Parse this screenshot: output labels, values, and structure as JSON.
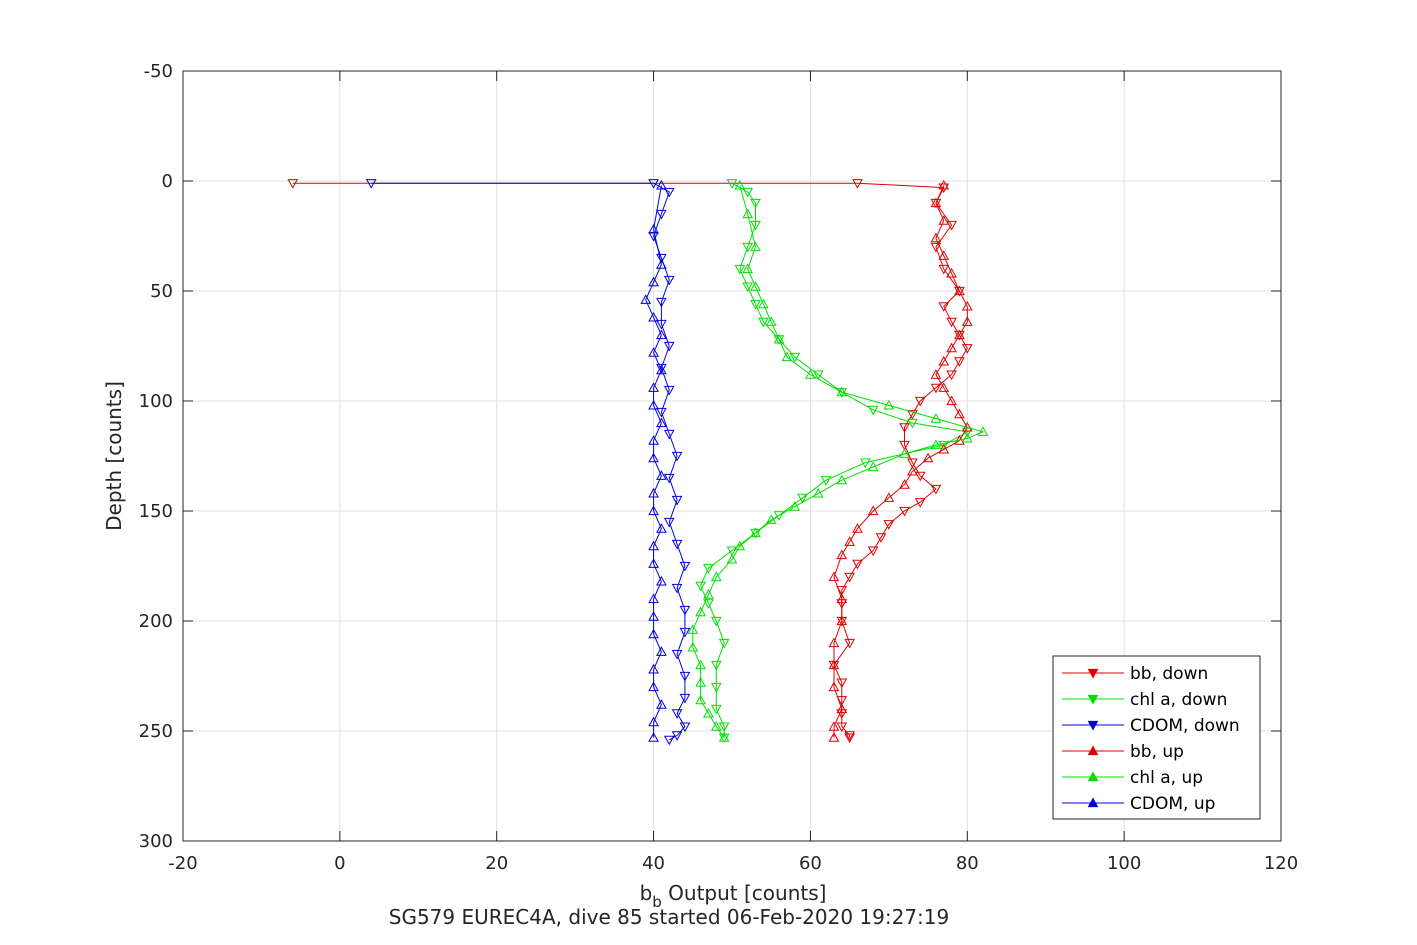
{
  "chart_data": {
    "type": "line",
    "xlabel": "b",
    "xlabel_sub": "b",
    "xlabel_rest": " Output [counts]",
    "ylabel": "Depth [counts]",
    "subtitle": "SG579 EUREC4A, dive 85 started 06-Feb-2020 19:27:19",
    "xlim": [
      -20,
      120
    ],
    "ylim": [
      -50,
      300
    ],
    "y_reversed": true,
    "xticks": [
      -20,
      0,
      20,
      40,
      60,
      80,
      100,
      120
    ],
    "yticks": [
      -50,
      0,
      50,
      100,
      150,
      200,
      250,
      300
    ],
    "grid": true,
    "legend_position": "bottom-right",
    "series": [
      {
        "name": "bb, down",
        "color": "#e00000",
        "marker": "triangle-down",
        "x": [
          -6,
          66,
          77,
          76,
          78,
          76,
          77,
          79,
          77,
          78,
          79,
          80,
          79,
          78,
          76,
          74,
          73,
          72,
          72,
          73,
          74,
          76,
          74,
          72,
          70,
          69,
          68,
          66,
          65,
          64,
          64,
          64,
          65,
          63,
          64,
          64,
          64,
          64,
          65,
          65
        ],
        "y": [
          1,
          1,
          3,
          10,
          20,
          30,
          40,
          50,
          57,
          64,
          70,
          76,
          82,
          88,
          94,
          100,
          106,
          112,
          120,
          128,
          134,
          140,
          146,
          150,
          156,
          162,
          168,
          174,
          180,
          186,
          192,
          200,
          210,
          220,
          228,
          236,
          242,
          248,
          252,
          253
        ]
      },
      {
        "name": "chl a, down",
        "color": "#00e000",
        "marker": "triangle-down",
        "x": [
          50,
          52,
          53,
          53,
          52,
          51,
          52,
          53,
          54,
          56,
          58,
          61,
          64,
          68,
          73,
          80,
          77,
          67,
          62,
          59,
          56,
          53,
          50,
          47,
          46,
          47,
          48,
          49,
          48,
          48,
          48,
          49,
          49
        ],
        "y": [
          1,
          5,
          10,
          20,
          30,
          40,
          48,
          56,
          64,
          72,
          80,
          88,
          96,
          104,
          110,
          114,
          120,
          128,
          136,
          144,
          152,
          160,
          168,
          176,
          184,
          192,
          200,
          210,
          220,
          230,
          240,
          248,
          253
        ]
      },
      {
        "name": "CDOM, down",
        "color": "#0000e0",
        "marker": "triangle-down",
        "x": [
          4,
          40,
          42,
          41,
          40,
          41,
          42,
          41,
          41,
          42,
          41,
          42,
          41,
          42,
          43,
          42,
          43,
          42,
          43,
          44,
          43,
          44,
          44,
          43,
          44,
          44,
          43,
          44,
          43,
          42
        ],
        "y": [
          1,
          1,
          5,
          15,
          25,
          35,
          45,
          55,
          65,
          75,
          85,
          95,
          105,
          115,
          125,
          135,
          145,
          155,
          165,
          175,
          185,
          195,
          205,
          215,
          225,
          235,
          242,
          248,
          252,
          254
        ]
      },
      {
        "name": "bb, up",
        "color": "#e00000",
        "marker": "triangle-up",
        "x": [
          63,
          63,
          64,
          63,
          63,
          63,
          64,
          64,
          63,
          64,
          65,
          66,
          68,
          70,
          72,
          73,
          75,
          77,
          79,
          80,
          79,
          78,
          77,
          76,
          77,
          78,
          79,
          80,
          80,
          79,
          78,
          77,
          76,
          77,
          76,
          77
        ],
        "y": [
          253,
          248,
          240,
          230,
          220,
          210,
          200,
          190,
          180,
          170,
          164,
          158,
          150,
          144,
          138,
          132,
          126,
          122,
          118,
          112,
          106,
          100,
          94,
          88,
          82,
          76,
          70,
          64,
          57,
          50,
          42,
          34,
          26,
          18,
          10,
          2
        ]
      },
      {
        "name": "chl a, up",
        "color": "#00e000",
        "marker": "triangle-up",
        "x": [
          49,
          48,
          47,
          46,
          46,
          46,
          45,
          45,
          46,
          47,
          48,
          50,
          51,
          53,
          55,
          58,
          61,
          64,
          68,
          72,
          76,
          80,
          82,
          76,
          70,
          64,
          60,
          57,
          56,
          55,
          54,
          53,
          52,
          53,
          52,
          51
        ],
        "y": [
          253,
          248,
          242,
          236,
          228,
          220,
          212,
          204,
          196,
          188,
          180,
          172,
          166,
          160,
          154,
          148,
          142,
          136,
          130,
          124,
          120,
          117,
          114,
          108,
          102,
          96,
          88,
          80,
          72,
          64,
          56,
          48,
          40,
          30,
          15,
          2
        ]
      },
      {
        "name": "CDOM, up",
        "color": "#0000e0",
        "marker": "triangle-up",
        "x": [
          40,
          40,
          41,
          40,
          40,
          41,
          40,
          40,
          40,
          41,
          40,
          40,
          41,
          40,
          40,
          41,
          40,
          40,
          41,
          40,
          40,
          41,
          40,
          41,
          40,
          39,
          40,
          41,
          40,
          41
        ],
        "y": [
          253,
          246,
          238,
          230,
          222,
          214,
          206,
          198,
          190,
          182,
          174,
          166,
          158,
          150,
          142,
          134,
          126,
          118,
          110,
          102,
          94,
          86,
          78,
          70,
          62,
          54,
          46,
          38,
          22,
          2
        ]
      }
    ]
  }
}
